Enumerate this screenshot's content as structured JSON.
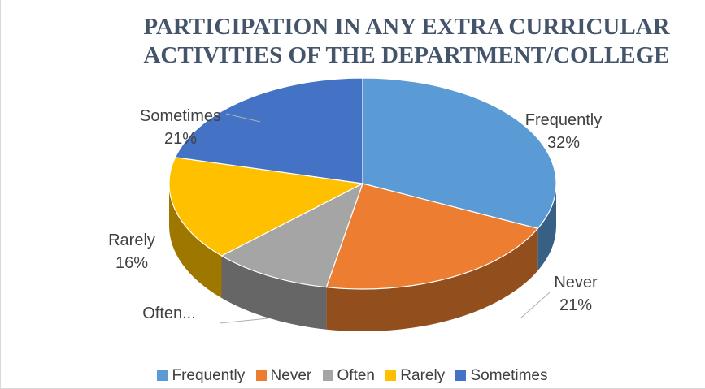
{
  "chart_data": {
    "type": "pie",
    "title": "PARTICIPATION IN ANY EXTRA CURRICULAR ACTIVITIES OF THE DEPARTMENT/COLLEGE",
    "title_lines": [
      "PARTICIPATION IN ANY EXTRA CURRICULAR",
      "ACTIVITIES OF THE DEPARTMENT/COLLEGE"
    ],
    "slices": [
      {
        "name": "Frequently",
        "value": 32,
        "label": "Frequently",
        "pct_label": "32%",
        "color": "#5b9bd5"
      },
      {
        "name": "Never",
        "value": 21,
        "label": "Never",
        "pct_label": "21%",
        "color": "#ed7d31"
      },
      {
        "name": "Often",
        "value": 10,
        "label": "Often...",
        "pct_label": "",
        "color": "#a5a5a5"
      },
      {
        "name": "Rarely",
        "value": 16,
        "label": "Rarely",
        "pct_label": "16%",
        "color": "#ffc000"
      },
      {
        "name": "Sometimes",
        "value": 21,
        "label": "Sometimes",
        "pct_label": "21%",
        "color": "#4472c4"
      }
    ],
    "legend": [
      "Frequently",
      "Never",
      "Often",
      "Rarely",
      "Sometimes"
    ],
    "legend_position": "bottom",
    "style": "3d"
  }
}
